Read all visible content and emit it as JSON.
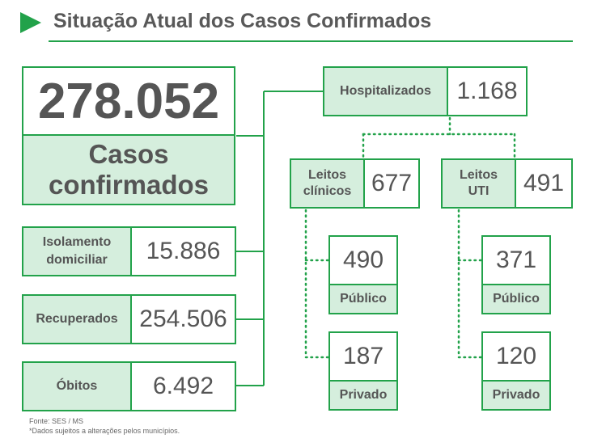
{
  "header": {
    "title": "Situação Atual dos Casos Confirmados"
  },
  "total": {
    "value": "278.052",
    "label_line1": "Casos",
    "label_line2": "confirmados"
  },
  "isolamento": {
    "label_line1": "Isolamento",
    "label_line2": "domiciliar",
    "value": "15.886"
  },
  "recuperados": {
    "label": "Recuperados",
    "value": "254.506"
  },
  "obitos": {
    "label": "Óbitos",
    "value": "6.492"
  },
  "hospitalizados": {
    "label": "Hospitalizados",
    "value": "1.168"
  },
  "leitos_clinicos": {
    "label_line1": "Leitos",
    "label_line2": "clínicos",
    "value": "677",
    "publico": {
      "value": "490",
      "label": "Público"
    },
    "privado": {
      "value": "187",
      "label": "Privado"
    }
  },
  "leitos_uti": {
    "label_line1": "Leitos",
    "label_line2": "UTI",
    "value": "491",
    "publico": {
      "value": "371",
      "label": "Público"
    },
    "privado": {
      "value": "120",
      "label": "Privado"
    }
  },
  "footer": {
    "source": "Fonte: SES / MS",
    "note": "*Dados sujeitos a alterações pelos municípios."
  },
  "colors": {
    "accent": "#22a24a",
    "label_fill": "#d5eedd",
    "text": "#555555"
  }
}
